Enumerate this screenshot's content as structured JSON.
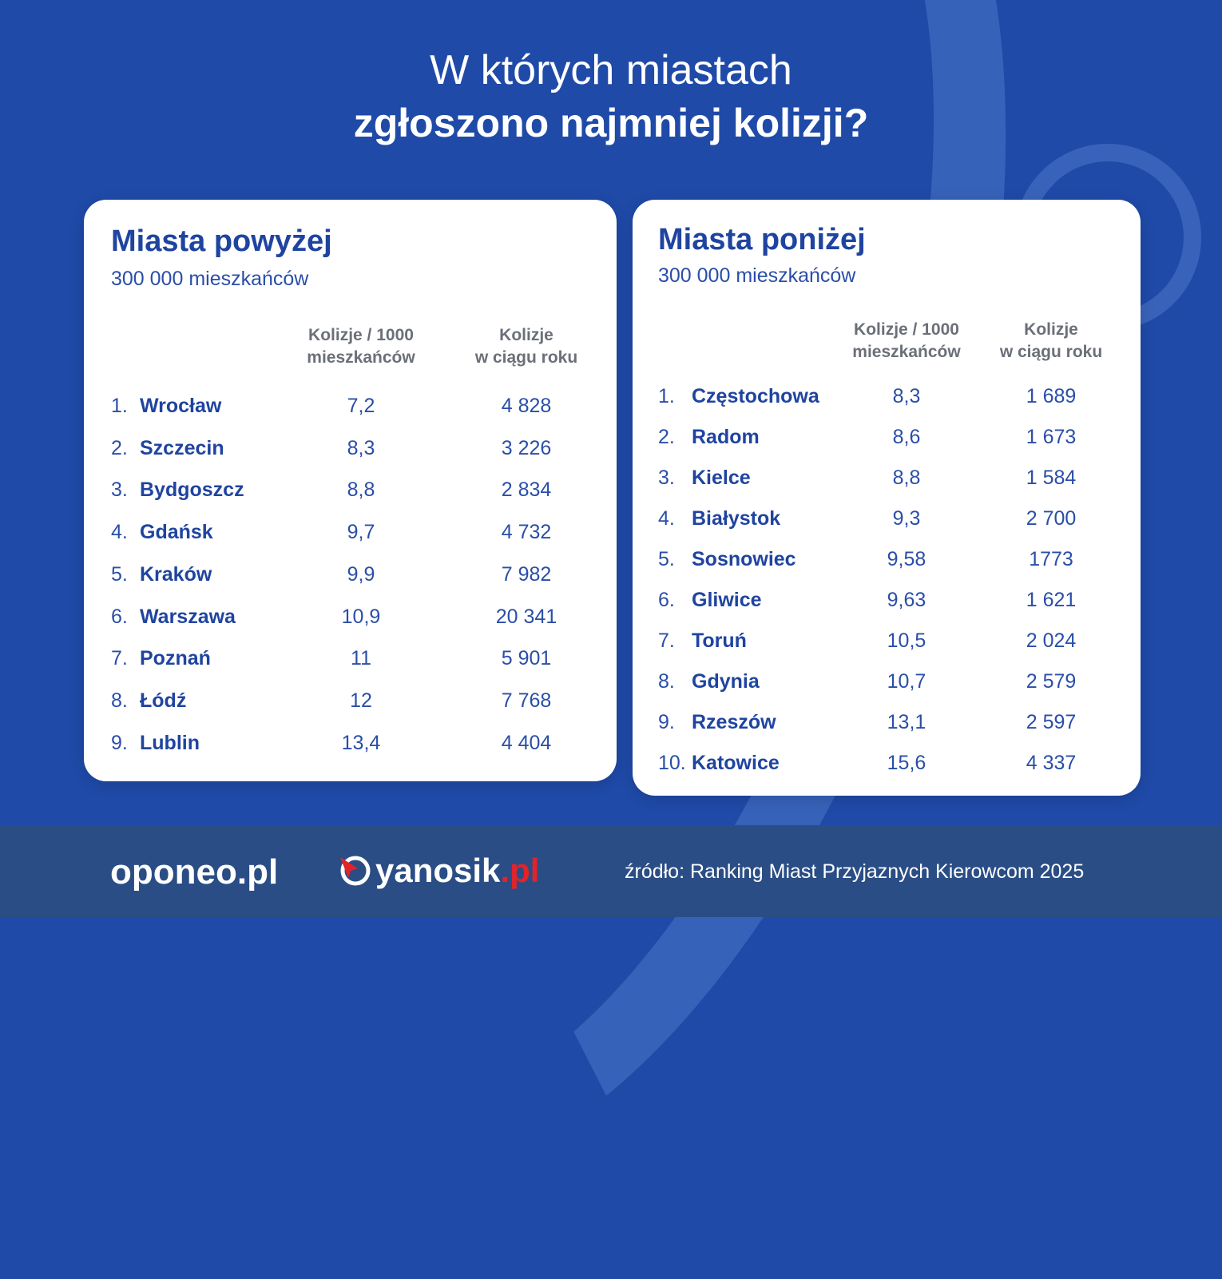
{
  "header": {
    "title_line1": "W których miastach",
    "title_line2": "zgłoszono najmniej kolizji?"
  },
  "left_table": {
    "title": "Miasta powyżej",
    "subtitle": "300 000 mieszkańców",
    "col1_header": "Kolizje / 1000\nmieszkańców",
    "col2_header": "Kolizje\nw ciągu roku",
    "rows": [
      {
        "rank": "1.",
        "city": "Wrocław",
        "per_1000": "7,2",
        "per_year": "4 828"
      },
      {
        "rank": "2.",
        "city": "Szczecin",
        "per_1000": "8,3",
        "per_year": "3 226"
      },
      {
        "rank": "3.",
        "city": "Bydgoszcz",
        "per_1000": "8,8",
        "per_year": "2 834"
      },
      {
        "rank": "4.",
        "city": "Gdańsk",
        "per_1000": "9,7",
        "per_year": "4 732"
      },
      {
        "rank": "5.",
        "city": "Kraków",
        "per_1000": "9,9",
        "per_year": "7 982"
      },
      {
        "rank": "6.",
        "city": "Warszawa",
        "per_1000": "10,9",
        "per_year": "20 341"
      },
      {
        "rank": "7.",
        "city": "Poznań",
        "per_1000": "11",
        "per_year": "5 901"
      },
      {
        "rank": "8.",
        "city": "Łódź",
        "per_1000": "12",
        "per_year": "7 768"
      },
      {
        "rank": "9.",
        "city": "Lublin",
        "per_1000": "13,4",
        "per_year": "4 404"
      }
    ]
  },
  "right_table": {
    "title": "Miasta poniżej",
    "subtitle": "300 000 mieszkańców",
    "col1_header": "Kolizje / 1000\nmieszkańców",
    "col2_header": "Kolizje\nw ciągu roku",
    "rows": [
      {
        "rank": "1.",
        "city": "Częstochowa",
        "per_1000": "8,3",
        "per_year": "1 689"
      },
      {
        "rank": "2.",
        "city": "Radom",
        "per_1000": "8,6",
        "per_year": "1 673"
      },
      {
        "rank": "3.",
        "city": "Kielce",
        "per_1000": "8,8",
        "per_year": "1 584"
      },
      {
        "rank": "4.",
        "city": "Białystok",
        "per_1000": "9,3",
        "per_year": "2 700"
      },
      {
        "rank": "5.",
        "city": "Sosnowiec",
        "per_1000": "9,58",
        "per_year": "1773"
      },
      {
        "rank": "6.",
        "city": "Gliwice",
        "per_1000": "9,63",
        "per_year": "1 621"
      },
      {
        "rank": "7.",
        "city": "Toruń",
        "per_1000": "10,5",
        "per_year": "2 024"
      },
      {
        "rank": "8.",
        "city": "Gdynia",
        "per_1000": "10,7",
        "per_year": "2 579"
      },
      {
        "rank": "9.",
        "city": "Rzeszów",
        "per_1000": "13,1",
        "per_year": "2 597"
      },
      {
        "rank": "10.",
        "city": "Katowice",
        "per_1000": "15,6",
        "per_year": "4 337"
      }
    ]
  },
  "footer": {
    "logo_oponeo": "oponeo.pl",
    "logo_yanosik_name": "yanosik",
    "logo_yanosik_tld": ".pl",
    "source": "źródło: Ranking Miast Przyjaznych Kierowcom 2025"
  },
  "colors": {
    "background": "#1f4aa8",
    "footer": "#2a4d85",
    "city_text": "#1f44a0",
    "yanosik_red": "#e2232a"
  }
}
